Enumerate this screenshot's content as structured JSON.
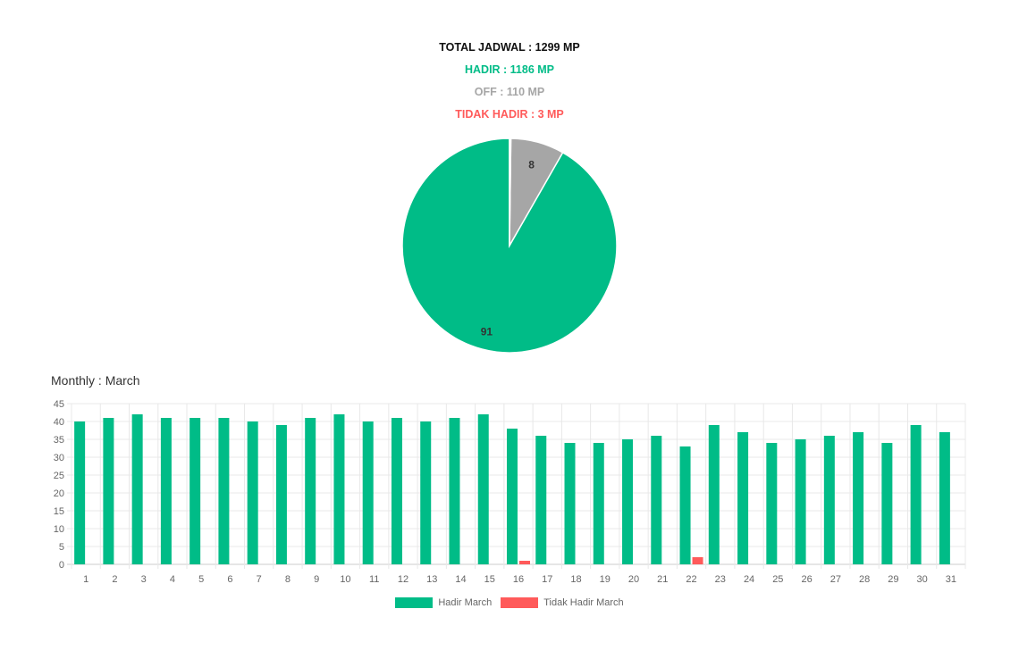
{
  "summary": {
    "total": "TOTAL JADWAL : 1299 MP",
    "hadir": "HADIR : 1186 MP",
    "off": "OFF : 110 MP",
    "tidak_hadir": "TIDAK HADIR : 3 MP"
  },
  "colors": {
    "hadir": "#00bc87",
    "off": "#a6a6a6",
    "tidak_hadir": "#ff5a5a",
    "total": "#111111"
  },
  "monthly_title": "Monthly : March",
  "chart_data": [
    {
      "type": "pie",
      "slices": [
        {
          "label": "",
          "value": 91,
          "display": "91",
          "color": "#00bc87"
        },
        {
          "label": "",
          "value": 8,
          "display": "8",
          "color": "#a6a6a6"
        },
        {
          "label": "",
          "value": 0.2,
          "display": "",
          "color": "#ff5a5a"
        }
      ]
    },
    {
      "type": "bar",
      "title": "Monthly : March",
      "categories": [
        "1",
        "2",
        "3",
        "4",
        "5",
        "6",
        "7",
        "8",
        "9",
        "10",
        "11",
        "12",
        "13",
        "14",
        "15",
        "16",
        "17",
        "18",
        "19",
        "20",
        "21",
        "22",
        "23",
        "24",
        "25",
        "26",
        "27",
        "28",
        "29",
        "30",
        "31"
      ],
      "series": [
        {
          "name": "Hadir March",
          "color": "#00bc87",
          "values": [
            40,
            41,
            42,
            41,
            41,
            41,
            40,
            39,
            41,
            42,
            40,
            41,
            40,
            41,
            42,
            38,
            36,
            34,
            34,
            35,
            36,
            33,
            39,
            37,
            34,
            35,
            36,
            37,
            34,
            39,
            37
          ]
        },
        {
          "name": "Tidak Hadir March",
          "color": "#ff5a5a",
          "values": [
            0,
            0,
            0,
            0,
            0,
            0,
            0,
            0,
            0,
            0,
            0,
            0,
            0,
            0,
            0,
            1,
            0,
            0,
            0,
            0,
            0,
            2,
            0,
            0,
            0,
            0,
            0,
            0,
            0,
            0,
            0
          ]
        }
      ],
      "ylim": [
        0,
        45
      ],
      "yticks": [
        0,
        5,
        10,
        15,
        20,
        25,
        30,
        35,
        40,
        45
      ],
      "grid": true,
      "legend": "bottom"
    }
  ]
}
